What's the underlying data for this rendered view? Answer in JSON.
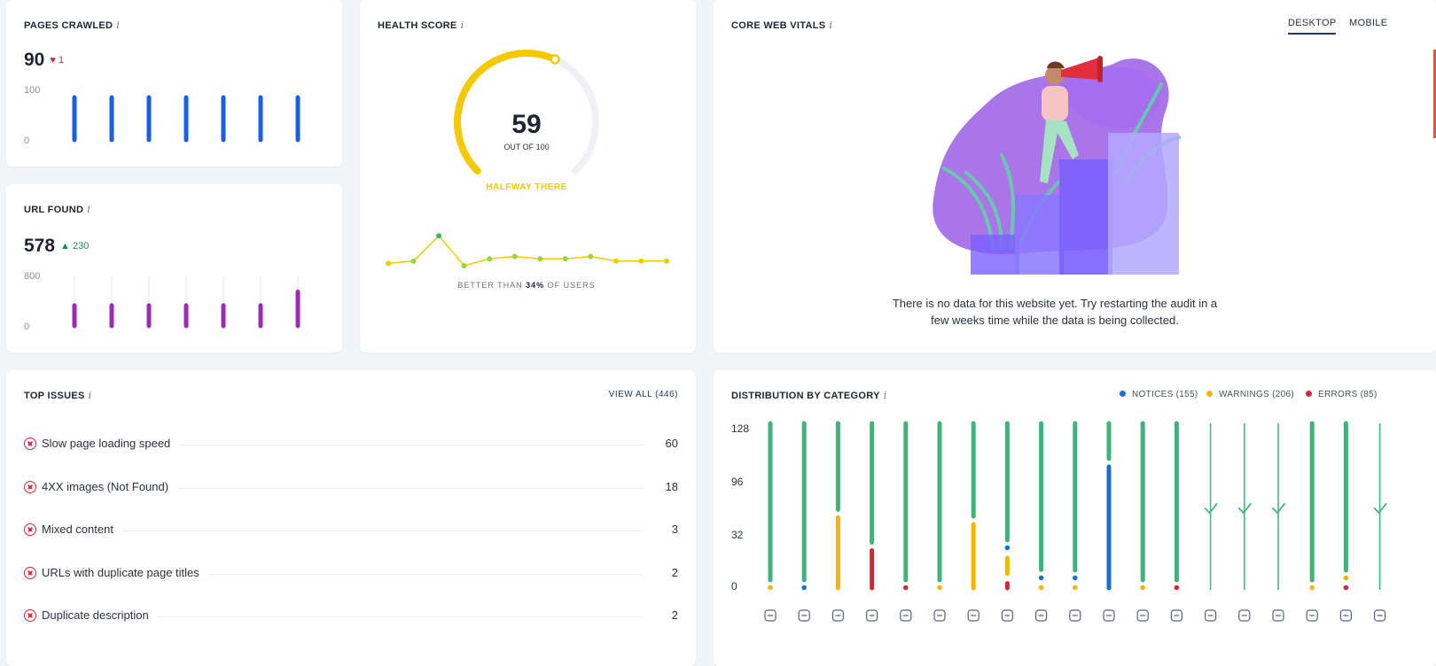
{
  "pages_crawled": {
    "title": "PAGES CRAWLED",
    "value": "90",
    "delta": "1",
    "delta_direction": "down",
    "axis_max": "100",
    "axis_min": "0",
    "bar_values": [
      100,
      100,
      100,
      100,
      100,
      100,
      100
    ],
    "bar_color": "#1a5ee8"
  },
  "url_found": {
    "title": "URL FOUND",
    "value": "578",
    "delta": "230",
    "delta_direction": "up",
    "axis_max": "800",
    "axis_min": "0",
    "bar_values": [
      330,
      330,
      330,
      330,
      330,
      330,
      550
    ],
    "bar_color": "#9b2ab5"
  },
  "health_score": {
    "title": "HEALTH SCORE",
    "score": "59",
    "out_of": "OUT OF 100",
    "status": "HALFWAY THERE",
    "score_fraction": 0.59,
    "better_than_prefix": "BETTER THAN ",
    "better_than_value": "34%",
    "better_than_suffix": " OF USERS",
    "trend": [
      51,
      52,
      63,
      50,
      53,
      54,
      53,
      53,
      54,
      52,
      52,
      52
    ],
    "trend_highlight_index": 2,
    "color_main": "#f5c900",
    "color_highlight": "#3fb37a"
  },
  "core_web_vitals": {
    "title": "CORE WEB VITALS",
    "tabs": [
      "DESKTOP",
      "MOBILE"
    ],
    "active_tab": "DESKTOP",
    "no_data_message": "There is no data for this website yet. Try restarting the audit in a few weeks time while the data is being collected."
  },
  "top_issues": {
    "title": "TOP ISSUES",
    "view_all": "VIEW ALL (446)",
    "items": [
      {
        "label": "Slow page loading speed",
        "count": "60"
      },
      {
        "label": "4XX images (Not Found)",
        "count": "18"
      },
      {
        "label": "Mixed content",
        "count": "3"
      },
      {
        "label": "URLs with duplicate page titles",
        "count": "2"
      },
      {
        "label": "Duplicate description",
        "count": "2"
      }
    ]
  },
  "distribution": {
    "title": "DISTRIBUTION BY CATEGORY",
    "legend": [
      {
        "label": "NOTICES (155)",
        "color": "#1c6fd1"
      },
      {
        "label": "WARNINGS (206)",
        "color": "#f5b400"
      },
      {
        "label": "ERRORS (85)",
        "color": "#d6243b"
      }
    ],
    "ticks": [
      "128",
      "96",
      "32",
      "0"
    ],
    "tick_values": [
      128,
      96,
      32,
      0
    ],
    "green": "#3fb37a",
    "columns": [
      {
        "icon": "globe-cog-icon",
        "notices": 0,
        "warnings": 1,
        "errors": 0,
        "empty": false
      },
      {
        "icon": "bolt-icon",
        "notices": 1,
        "warnings": 0,
        "errors": 0,
        "empty": false
      },
      {
        "icon": "code-icon",
        "notices": 0,
        "warnings": 54,
        "errors": 0,
        "empty": false
      },
      {
        "icon": "text-lines-icon",
        "notices": 0,
        "warnings": 0,
        "errors": 30,
        "empty": false
      },
      {
        "icon": "font-icon",
        "notices": 0,
        "warnings": 0,
        "errors": 1,
        "empty": false
      },
      {
        "icon": "image-icon",
        "notices": 0,
        "warnings": 1,
        "errors": 0,
        "empty": false
      },
      {
        "icon": "mobile-icon",
        "notices": 0,
        "warnings": 49,
        "errors": 0,
        "empty": false
      },
      {
        "icon": "pulse-icon",
        "notices": 2,
        "warnings": 14,
        "errors": 6,
        "empty": false
      },
      {
        "icon": "document-icon",
        "notices": 3,
        "warnings": 1,
        "errors": 0,
        "empty": false
      },
      {
        "icon": "search-icon",
        "notices": 1,
        "warnings": 1,
        "errors": 0,
        "empty": false
      },
      {
        "icon": "external-link-icon",
        "notices": 91,
        "warnings": 0,
        "errors": 0,
        "empty": false
      },
      {
        "icon": "link-icon",
        "notices": 0,
        "warnings": 1,
        "errors": 0,
        "empty": false
      },
      {
        "icon": "shield-icon",
        "notices": 0,
        "warnings": 0,
        "errors": 1,
        "empty": false
      },
      {
        "icon": "copy-icon",
        "notices": 0,
        "warnings": 0,
        "errors": 0,
        "empty": true
      },
      {
        "icon": "redirect-icon",
        "notices": 0,
        "warnings": 0,
        "errors": 0,
        "empty": true
      },
      {
        "icon": "checkbox-icon",
        "notices": 0,
        "warnings": 0,
        "errors": 0,
        "empty": true
      },
      {
        "icon": "sliders-icon",
        "notices": 0,
        "warnings": 1,
        "errors": 0,
        "empty": false
      },
      {
        "icon": "underline-icon",
        "notices": 0,
        "warnings": 1,
        "errors": 1,
        "empty": false
      },
      {
        "icon": "globe-icon",
        "notices": 0,
        "warnings": 0,
        "errors": 0,
        "empty": true
      }
    ]
  }
}
